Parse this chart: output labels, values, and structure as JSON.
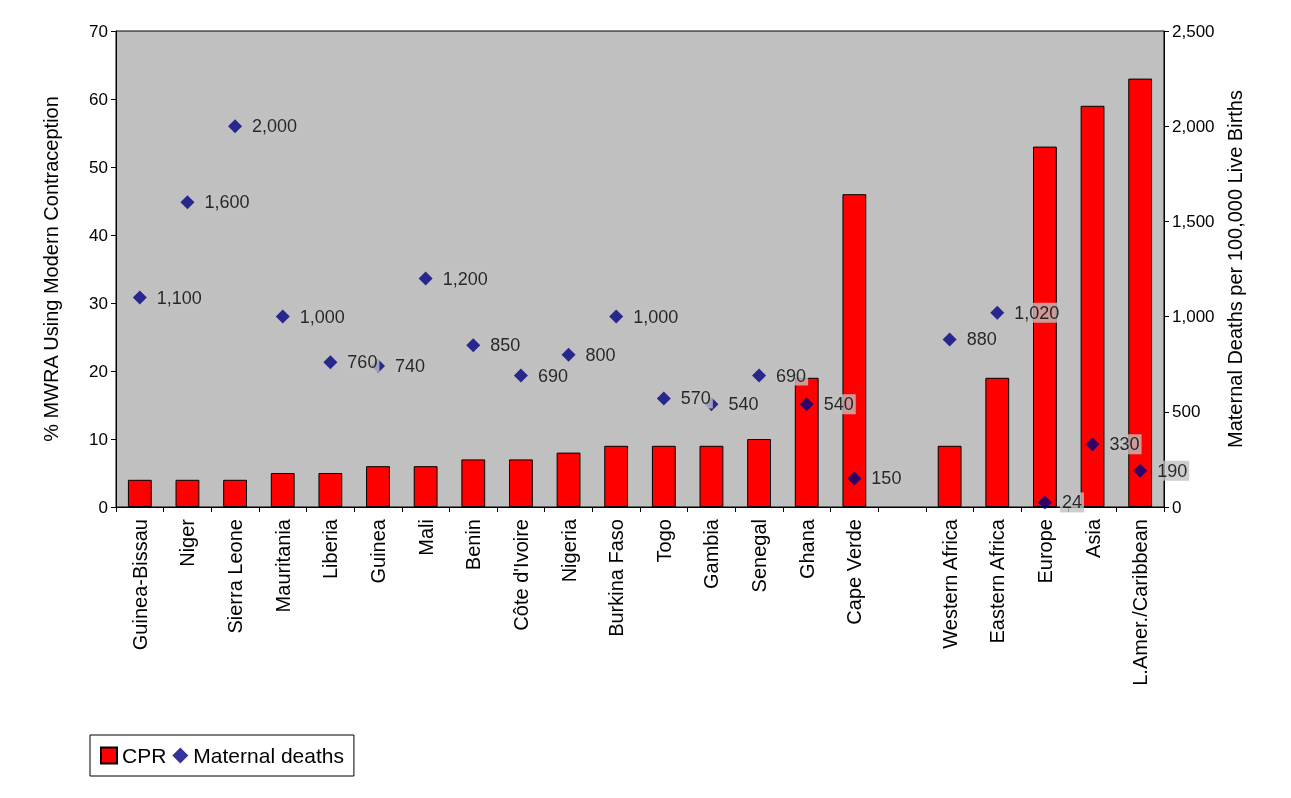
{
  "chart_data": {
    "type": "bar",
    "categories": [
      "Guinea-Bissau",
      "Niger",
      "Sierra Leone",
      "Mauritania",
      "Liberia",
      "Guinea",
      "Mali",
      "Benin",
      "Côte d'Ivoire",
      "Nigeria",
      "Burkina Faso",
      "Togo",
      "Gambia",
      "Senegal",
      "Ghana",
      "Cape Verde",
      null,
      "Western Africa",
      "Eastern Africa",
      "Europe",
      "Asia",
      "L.Amer./Caribbean"
    ],
    "ylabel": "% MWRA Using Modern Contraception",
    "y2label": "Maternal Deaths per 100,000 Live Births",
    "ylim": [
      0,
      70
    ],
    "yticks": [
      0,
      10,
      20,
      30,
      40,
      50,
      60,
      70
    ],
    "y2lim": [
      0,
      2500
    ],
    "y2ticks": [
      0,
      500,
      {
        "value": 1000,
        "label": "1,000"
      },
      {
        "value": 1500,
        "label": "1,500"
      },
      {
        "value": 2000,
        "label": "2,000"
      },
      {
        "value": 2500,
        "label": "2,500"
      }
    ],
    "grid": false,
    "legend": "bottom left",
    "series": [
      {
        "name": "CPR",
        "color": "#ff0000",
        "values": [
          4,
          4,
          4,
          5,
          5,
          6,
          6,
          7,
          7,
          8,
          9,
          9,
          9,
          10,
          19,
          46,
          null,
          9,
          19,
          53,
          59,
          63
        ]
      },
      {
        "name": "Maternal deaths",
        "type": "scatter",
        "axis": "y2",
        "marker": "diamond",
        "color": "#000080",
        "values": [
          1100,
          1600,
          2000,
          1000,
          760,
          740,
          1200,
          850,
          690,
          800,
          1000,
          570,
          540,
          690,
          540,
          150,
          null,
          880,
          1020,
          24,
          330,
          190
        ],
        "value_labels": [
          "1,100",
          "1,600",
          "2,000",
          "1,000",
          "760",
          "740",
          "1,200",
          "850",
          "690",
          "800",
          "1,000",
          "570",
          "540",
          "690",
          "540",
          "150",
          null,
          "880",
          "1,020",
          "24",
          "330",
          "190"
        ]
      }
    ]
  }
}
